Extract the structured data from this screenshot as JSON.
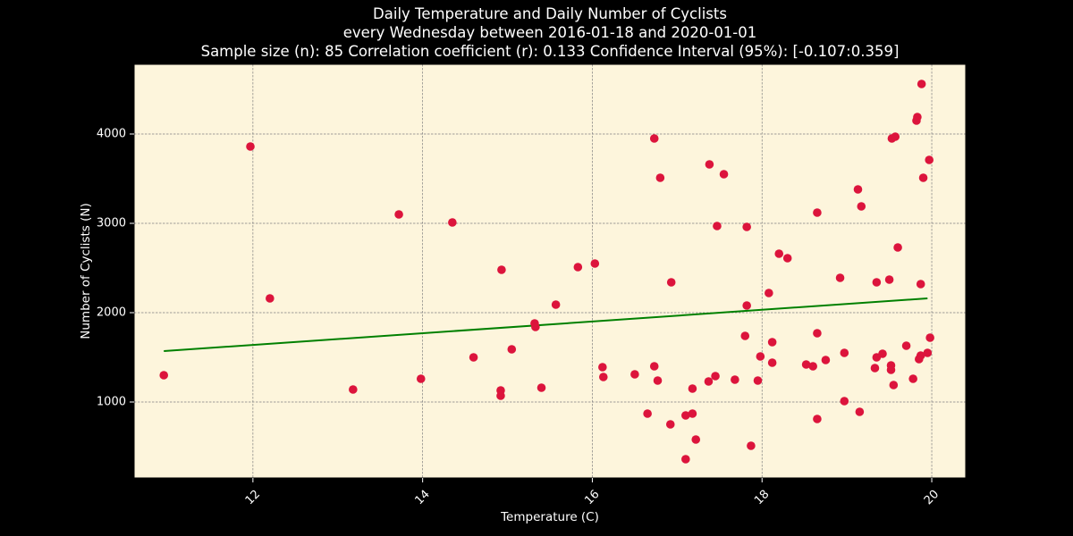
{
  "title": {
    "line1": "Daily Temperature and Daily Number of Cyclists",
    "line2": "every Wednesday between 2016-01-18 and 2020-01-01",
    "line3": "Sample size (n): 85   Correlation coefficient (r): 0.133   Confidence Interval (95%): [-0.107:0.359]"
  },
  "colors": {
    "background": "#000000",
    "plot_background": "#fdf5dc",
    "points": "#dc143c",
    "trend_line": "#008000",
    "grid": "#808080",
    "text": "#ffffff"
  },
  "chart_data": {
    "type": "scatter",
    "xlabel": "Temperature (C)",
    "ylabel": "Number of Cyclists (N)",
    "xlim": [
      10.6,
      20.4
    ],
    "ylim": [
      150,
      4780
    ],
    "x_ticks": [
      12,
      14,
      16,
      18,
      20
    ],
    "y_ticks": [
      1000,
      2000,
      3000,
      4000
    ],
    "x_tick_labels": [
      "12",
      "14",
      "16",
      "18",
      "20"
    ],
    "y_tick_labels": [
      "1000",
      "2000",
      "3000",
      "4000"
    ],
    "grid": true,
    "trend_line": {
      "x": [
        10.95,
        19.95
      ],
      "y": [
        1570,
        2160
      ]
    },
    "points": [
      [
        10.95,
        1300
      ],
      [
        11.97,
        3860
      ],
      [
        12.2,
        2160
      ],
      [
        13.18,
        1140
      ],
      [
        13.72,
        3100
      ],
      [
        13.98,
        1260
      ],
      [
        14.35,
        3010
      ],
      [
        14.6,
        1500
      ],
      [
        14.92,
        1130
      ],
      [
        14.92,
        1070
      ],
      [
        14.93,
        2480
      ],
      [
        15.05,
        1590
      ],
      [
        15.32,
        1880
      ],
      [
        15.33,
        1840
      ],
      [
        15.4,
        1160
      ],
      [
        15.57,
        2090
      ],
      [
        15.83,
        2510
      ],
      [
        16.03,
        2550
      ],
      [
        16.12,
        1390
      ],
      [
        16.13,
        1280
      ],
      [
        16.5,
        1310
      ],
      [
        16.65,
        870
      ],
      [
        16.73,
        1400
      ],
      [
        16.73,
        3950
      ],
      [
        16.77,
        1240
      ],
      [
        16.8,
        3510
      ],
      [
        16.92,
        750
      ],
      [
        16.93,
        2340
      ],
      [
        17.1,
        850
      ],
      [
        17.1,
        360
      ],
      [
        17.18,
        870
      ],
      [
        17.18,
        1150
      ],
      [
        17.22,
        580
      ],
      [
        17.37,
        1230
      ],
      [
        17.38,
        3660
      ],
      [
        17.45,
        1290
      ],
      [
        17.47,
        2970
      ],
      [
        17.55,
        3550
      ],
      [
        17.68,
        1250
      ],
      [
        17.8,
        1740
      ],
      [
        17.82,
        2960
      ],
      [
        17.82,
        2080
      ],
      [
        17.87,
        510
      ],
      [
        17.95,
        1240
      ],
      [
        17.98,
        1510
      ],
      [
        18.08,
        2220
      ],
      [
        18.12,
        1670
      ],
      [
        18.12,
        1440
      ],
      [
        18.2,
        2660
      ],
      [
        18.3,
        2610
      ],
      [
        18.52,
        1420
      ],
      [
        18.6,
        1400
      ],
      [
        18.65,
        3120
      ],
      [
        18.65,
        1770
      ],
      [
        18.65,
        810
      ],
      [
        18.75,
        1470
      ],
      [
        18.92,
        2390
      ],
      [
        18.97,
        1550
      ],
      [
        18.97,
        1010
      ],
      [
        19.13,
        3380
      ],
      [
        19.15,
        890
      ],
      [
        19.17,
        3190
      ],
      [
        19.33,
        1380
      ],
      [
        19.35,
        2340
      ],
      [
        19.35,
        1500
      ],
      [
        19.42,
        1540
      ],
      [
        19.5,
        2370
      ],
      [
        19.52,
        1410
      ],
      [
        19.52,
        1360
      ],
      [
        19.53,
        3950
      ],
      [
        19.55,
        1190
      ],
      [
        19.57,
        3970
      ],
      [
        19.6,
        2730
      ],
      [
        19.7,
        1630
      ],
      [
        19.78,
        1260
      ],
      [
        19.82,
        4150
      ],
      [
        19.83,
        4190
      ],
      [
        19.85,
        1480
      ],
      [
        19.87,
        1520
      ],
      [
        19.87,
        2320
      ],
      [
        19.88,
        4560
      ],
      [
        19.9,
        3510
      ],
      [
        19.95,
        1550
      ],
      [
        19.97,
        3710
      ],
      [
        19.98,
        1720
      ]
    ]
  }
}
